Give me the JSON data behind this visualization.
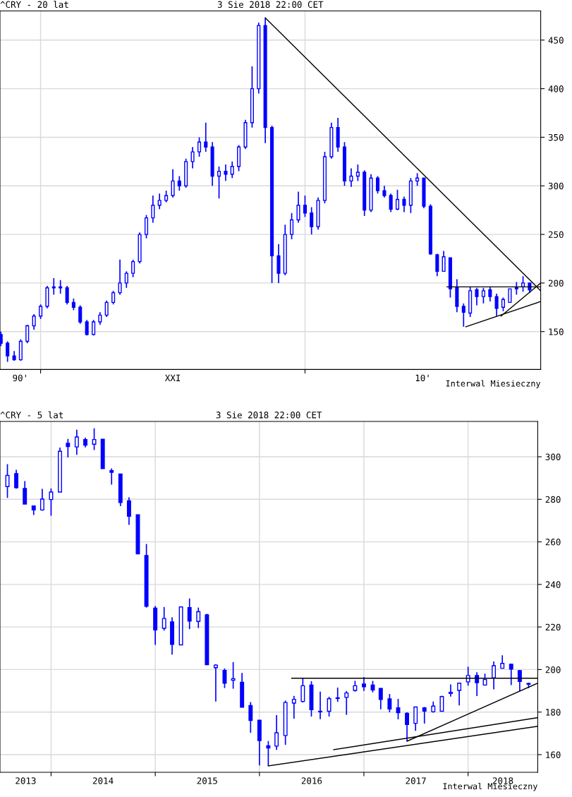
{
  "chart_data": [
    {
      "type": "candlestick",
      "title": "^CRY - 20 lat",
      "subtitle": "3 Sie 2018 22:00 CET",
      "annotations": [
        "Interwal Miesieczny"
      ],
      "color": "#0000ff",
      "grid": true,
      "xlim": [
        "1998-06-19",
        "2018-12-01"
      ],
      "ylim": [
        111,
        480
      ],
      "yticks": [
        150,
        200,
        250,
        300,
        350,
        400,
        450
      ],
      "xticks": [
        {
          "value": "1999-03-27",
          "label": "90'"
        },
        {
          "value": "2000-01-01",
          "label": null
        },
        {
          "value": "2005-01-01",
          "label": "XXI"
        },
        {
          "value": "2010-01-01",
          "label": null
        },
        {
          "value": "2014-06-17",
          "label": "10'"
        }
      ],
      "x": [
        "1998-07",
        "1998-10",
        "1999-01",
        "1999-04",
        "1999-07",
        "1999-10",
        "2000-01",
        "2000-04",
        "2000-07",
        "2000-10",
        "2001-01",
        "2001-04",
        "2001-07",
        "2001-10",
        "2002-01",
        "2002-04",
        "2002-07",
        "2002-10",
        "2003-01",
        "2003-04",
        "2003-07",
        "2003-10",
        "2004-01",
        "2004-04",
        "2004-07",
        "2004-10",
        "2005-01",
        "2005-04",
        "2005-07",
        "2005-10",
        "2006-01",
        "2006-04",
        "2006-07",
        "2006-10",
        "2007-01",
        "2007-04",
        "2007-07",
        "2007-10",
        "2008-01",
        "2008-04",
        "2008-07",
        "2008-10",
        "2009-01",
        "2009-04",
        "2009-07",
        "2009-10",
        "2010-01",
        "2010-04",
        "2010-07",
        "2010-10",
        "2011-01",
        "2011-04",
        "2011-07",
        "2011-10",
        "2012-01",
        "2012-04",
        "2012-07",
        "2012-10",
        "2013-01",
        "2013-04",
        "2013-07",
        "2013-10",
        "2014-01",
        "2014-04",
        "2014-07",
        "2014-10",
        "2015-01",
        "2015-04",
        "2015-07",
        "2015-10",
        "2016-01",
        "2016-04",
        "2016-07",
        "2016-10",
        "2017-01",
        "2017-04",
        "2017-07",
        "2017-10",
        "2018-01",
        "2018-04",
        "2018-07"
      ],
      "ohlc": [
        [
          147,
          150,
          135,
          138
        ],
        [
          138,
          140,
          119,
          125
        ],
        [
          125,
          130,
          120,
          121
        ],
        [
          121,
          142,
          120,
          140
        ],
        [
          140,
          157,
          138,
          156
        ],
        [
          156,
          168,
          152,
          166
        ],
        [
          166,
          178,
          163,
          176
        ],
        [
          176,
          197,
          174,
          195
        ],
        [
          195,
          205,
          188,
          196
        ],
        [
          196,
          203,
          189,
          195
        ],
        [
          195,
          197,
          178,
          180
        ],
        [
          180,
          184,
          172,
          175
        ],
        [
          175,
          177,
          158,
          160
        ],
        [
          160,
          162,
          146,
          147
        ],
        [
          147,
          162,
          146,
          160
        ],
        [
          160,
          170,
          157,
          167
        ],
        [
          167,
          182,
          165,
          180
        ],
        [
          180,
          192,
          178,
          190
        ],
        [
          190,
          224,
          188,
          200
        ],
        [
          200,
          212,
          195,
          210
        ],
        [
          210,
          224,
          206,
          222
        ],
        [
          222,
          252,
          220,
          250
        ],
        [
          250,
          270,
          246,
          267
        ],
        [
          267,
          290,
          262,
          280
        ],
        [
          280,
          292,
          276,
          285
        ],
        [
          285,
          295,
          283,
          290
        ],
        [
          290,
          317,
          288,
          305
        ],
        [
          305,
          310,
          295,
          300
        ],
        [
          300,
          328,
          298,
          325
        ],
        [
          325,
          340,
          318,
          335
        ],
        [
          335,
          350,
          330,
          345
        ],
        [
          345,
          365,
          335,
          340
        ],
        [
          340,
          345,
          300,
          310
        ],
        [
          310,
          320,
          287,
          315
        ],
        [
          315,
          322,
          305,
          312
        ],
        [
          312,
          325,
          308,
          320
        ],
        [
          320,
          342,
          315,
          340
        ],
        [
          340,
          368,
          338,
          365
        ],
        [
          365,
          423,
          360,
          400
        ],
        [
          400,
          468,
          395,
          465
        ],
        [
          465,
          473,
          344,
          360
        ],
        [
          360,
          362,
          200,
          228
        ],
        [
          228,
          240,
          200,
          210
        ],
        [
          210,
          260,
          208,
          250
        ],
        [
          250,
          272,
          245,
          265
        ],
        [
          265,
          294,
          262,
          280
        ],
        [
          280,
          290,
          268,
          272
        ],
        [
          272,
          278,
          250,
          258
        ],
        [
          258,
          288,
          255,
          285
        ],
        [
          285,
          335,
          282,
          330
        ],
        [
          330,
          365,
          328,
          360
        ],
        [
          360,
          370,
          335,
          340
        ],
        [
          340,
          345,
          300,
          305
        ],
        [
          305,
          318,
          299,
          310
        ],
        [
          310,
          322,
          305,
          314
        ],
        [
          314,
          316,
          269,
          275
        ],
        [
          275,
          312,
          273,
          308
        ],
        [
          308,
          310,
          292,
          295
        ],
        [
          295,
          300,
          288,
          290
        ],
        [
          290,
          292,
          273,
          276
        ],
        [
          276,
          296,
          275,
          286
        ],
        [
          286,
          289,
          273,
          280
        ],
        [
          280,
          308,
          272,
          305
        ],
        [
          305,
          313,
          300,
          308
        ],
        [
          308,
          308,
          277,
          279
        ],
        [
          279,
          281,
          229,
          230
        ],
        [
          229,
          230,
          207,
          212
        ],
        [
          212,
          233,
          212,
          227
        ],
        [
          226,
          226,
          185,
          194
        ],
        [
          195,
          204,
          170,
          176
        ],
        [
          176,
          179,
          155,
          170
        ],
        [
          169,
          196,
          165,
          192
        ],
        [
          193,
          195,
          177,
          186
        ],
        [
          186,
          195,
          179,
          192
        ],
        [
          193,
          196,
          181,
          186
        ],
        [
          186,
          189,
          166,
          174
        ],
        [
          175,
          185,
          171,
          183
        ],
        [
          180,
          194,
          180,
          194
        ],
        [
          194,
          201,
          188,
          195
        ],
        [
          196,
          207,
          191,
          200
        ],
        [
          200,
          200,
          190,
          193
        ]
      ],
      "series": [
        {
          "type": "line",
          "color": "#000000",
          "x": [
            "2008-07-01",
            "2018-12-01"
          ],
          "values": [
            473,
            192
          ]
        },
        {
          "type": "line",
          "color": "#000000",
          "x": [
            "2015-05-15",
            "2018-12-01"
          ],
          "values": [
            196,
            196
          ]
        },
        {
          "type": "line",
          "color": "#000000",
          "x": [
            "2016-02-01",
            "2018-12-01"
          ],
          "values": [
            155,
            181
          ]
        },
        {
          "type": "line",
          "color": "#000000",
          "x": [
            "2017-06-01",
            "2018-12-01"
          ],
          "values": [
            166,
            200
          ]
        }
      ]
    },
    {
      "type": "candlestick",
      "title": "^CRY - 5 lat",
      "subtitle": "3 Sie 2018 22:00 CET",
      "annotations": [
        "Interwal Miesieczny"
      ],
      "color": "#0000ff",
      "grid": true,
      "xlim": [
        "2013-07-06",
        "2018-09-02"
      ],
      "ylim": [
        151.7,
        316.6
      ],
      "yticks": [
        160,
        180,
        200,
        220,
        240,
        260,
        280,
        300
      ],
      "xticks": [
        {
          "value": "2013-10-04",
          "label": "2013"
        },
        {
          "value": "2014-01-01",
          "label": null
        },
        {
          "value": "2014-07-02",
          "label": "2014"
        },
        {
          "value": "2015-01-01",
          "label": null
        },
        {
          "value": "2015-07-02",
          "label": "2015"
        },
        {
          "value": "2016-01-01",
          "label": null
        },
        {
          "value": "2016-07-02",
          "label": "2016"
        },
        {
          "value": "2017-01-01",
          "label": null
        },
        {
          "value": "2017-07-02",
          "label": "2017"
        },
        {
          "value": "2018-01-01",
          "label": null
        },
        {
          "value": "2018-05-03",
          "label": "2018"
        }
      ],
      "x": [
        "2013-08",
        "2013-09",
        "2013-10",
        "2013-11",
        "2013-12",
        "2014-01",
        "2014-02",
        "2014-03",
        "2014-04",
        "2014-05",
        "2014-06",
        "2014-07",
        "2014-08",
        "2014-09",
        "2014-10",
        "2014-11",
        "2014-12",
        "2015-01",
        "2015-02",
        "2015-03",
        "2015-04",
        "2015-05",
        "2015-06",
        "2015-07",
        "2015-08",
        "2015-09",
        "2015-10",
        "2015-11",
        "2015-12",
        "2016-01",
        "2016-02",
        "2016-03",
        "2016-04",
        "2016-05",
        "2016-06",
        "2016-07",
        "2016-08",
        "2016-09",
        "2016-10",
        "2016-11",
        "2016-12",
        "2017-01",
        "2017-02",
        "2017-03",
        "2017-04",
        "2017-05",
        "2017-06",
        "2017-07",
        "2017-08",
        "2017-09",
        "2017-10",
        "2017-11",
        "2017-12",
        "2018-01",
        "2018-02",
        "2018-03",
        "2018-04",
        "2018-05",
        "2018-06",
        "2018-07",
        "2018-08"
      ],
      "ohlc": [
        [
          286.0,
          296.5,
          280.7,
          291.2
        ],
        [
          292.1,
          293.9,
          285.0,
          285.5
        ],
        [
          285.1,
          288.6,
          277.8,
          277.8
        ],
        [
          276.9,
          276.9,
          272.6,
          275.0
        ],
        [
          275.0,
          284.9,
          274.6,
          280.1
        ],
        [
          279.9,
          285.1,
          272.3,
          283.4
        ],
        [
          283.4,
          304.3,
          283.4,
          302.6
        ],
        [
          306.3,
          308.4,
          299.7,
          304.8
        ],
        [
          304.6,
          312.7,
          300.9,
          309.3
        ],
        [
          308.1,
          309.0,
          304.4,
          305.5
        ],
        [
          305.9,
          313.4,
          303.2,
          308.1
        ],
        [
          308.2,
          308.2,
          294.4,
          294.4
        ],
        [
          293.5,
          294.5,
          286.9,
          292.7
        ],
        [
          291.9,
          291.9,
          276.8,
          278.5
        ],
        [
          279.3,
          280.9,
          268.0,
          272.0
        ],
        [
          272.7,
          272.7,
          254.4,
          254.4
        ],
        [
          253.6,
          259.0,
          229.1,
          229.7
        ],
        [
          228.9,
          229.8,
          211.6,
          218.6
        ],
        [
          219.4,
          229.4,
          218.3,
          224.0
        ],
        [
          222.4,
          224.5,
          207.0,
          211.8
        ],
        [
          211.6,
          229.4,
          211.6,
          229.4
        ],
        [
          229.1,
          233.4,
          219.0,
          222.8
        ],
        [
          222.6,
          229.1,
          219.5,
          227.2
        ],
        [
          225.7,
          226.2,
          202.3,
          202.3
        ],
        [
          200.9,
          202.5,
          185.0,
          202.1
        ],
        [
          199.6,
          200.5,
          191.3,
          193.6
        ],
        [
          195.0,
          203.5,
          191.0,
          195.7
        ],
        [
          194.0,
          198.4,
          182.3,
          182.3
        ],
        [
          183.1,
          184.7,
          170.3,
          176.1
        ],
        [
          176.2,
          176.2,
          154.9,
          166.6
        ],
        [
          164.2,
          166.4,
          154.7,
          163.1
        ],
        [
          164.0,
          178.6,
          162.2,
          170.3
        ],
        [
          169.0,
          185.4,
          164.6,
          184.5
        ],
        [
          184.2,
          187.6,
          176.9,
          186.0
        ],
        [
          185.0,
          195.9,
          184.5,
          192.4
        ],
        [
          192.7,
          194.5,
          177.9,
          181.1
        ],
        [
          180.3,
          189.6,
          176.7,
          180.1
        ],
        [
          180.4,
          187.2,
          177.9,
          186.3
        ],
        [
          186.4,
          191.5,
          184.8,
          186.6
        ],
        [
          186.9,
          189.9,
          178.7,
          189.0
        ],
        [
          190.2,
          194.7,
          189.6,
          192.4
        ],
        [
          193.2,
          196.4,
          189.9,
          191.9
        ],
        [
          192.7,
          194.7,
          189.3,
          190.4
        ],
        [
          191.1,
          191.3,
          181.3,
          185.9
        ],
        [
          186.2,
          188.5,
          179.9,
          181.5
        ],
        [
          182.0,
          186.2,
          176.6,
          179.7
        ],
        [
          179.4,
          179.9,
          166.3,
          174.2
        ],
        [
          174.7,
          182.4,
          171.2,
          182.4
        ],
        [
          182.0,
          182.4,
          174.6,
          180.5
        ],
        [
          180.2,
          185.0,
          179.7,
          182.8
        ],
        [
          180.4,
          187.7,
          180.2,
          187.3
        ],
        [
          188.8,
          193.0,
          187.3,
          189.3
        ],
        [
          190.2,
          193.8,
          183.1,
          193.6
        ],
        [
          194.2,
          201.3,
          192.4,
          197.2
        ],
        [
          197.2,
          198.7,
          187.5,
          193.8
        ],
        [
          192.7,
          198.1,
          192.4,
          195.3
        ],
        [
          196.1,
          203.8,
          190.7,
          201.8
        ],
        [
          200.6,
          206.7,
          200.6,
          202.9
        ],
        [
          202.5,
          202.7,
          192.7,
          200.2
        ],
        [
          199.5,
          199.7,
          189.8,
          194.4
        ],
        [
          193.3,
          193.8,
          191.3,
          193.1
        ]
      ],
      "series": [
        {
          "type": "line",
          "color": "#000000",
          "x": [
            "2016-04-23",
            "2018-09-02"
          ],
          "values": [
            195.9,
            195.9
          ]
        },
        {
          "type": "line",
          "color": "#000000",
          "x": [
            "2016-02-01",
            "2018-09-02"
          ],
          "values": [
            154.7,
            173.3
          ]
        },
        {
          "type": "line",
          "color": "#000000",
          "x": [
            "2016-09-17",
            "2018-09-02"
          ],
          "values": [
            162.3,
            177.4
          ]
        },
        {
          "type": "line",
          "color": "#000000",
          "x": [
            "2017-06-01",
            "2018-09-02"
          ],
          "values": [
            166.3,
            193.6
          ]
        }
      ]
    }
  ]
}
